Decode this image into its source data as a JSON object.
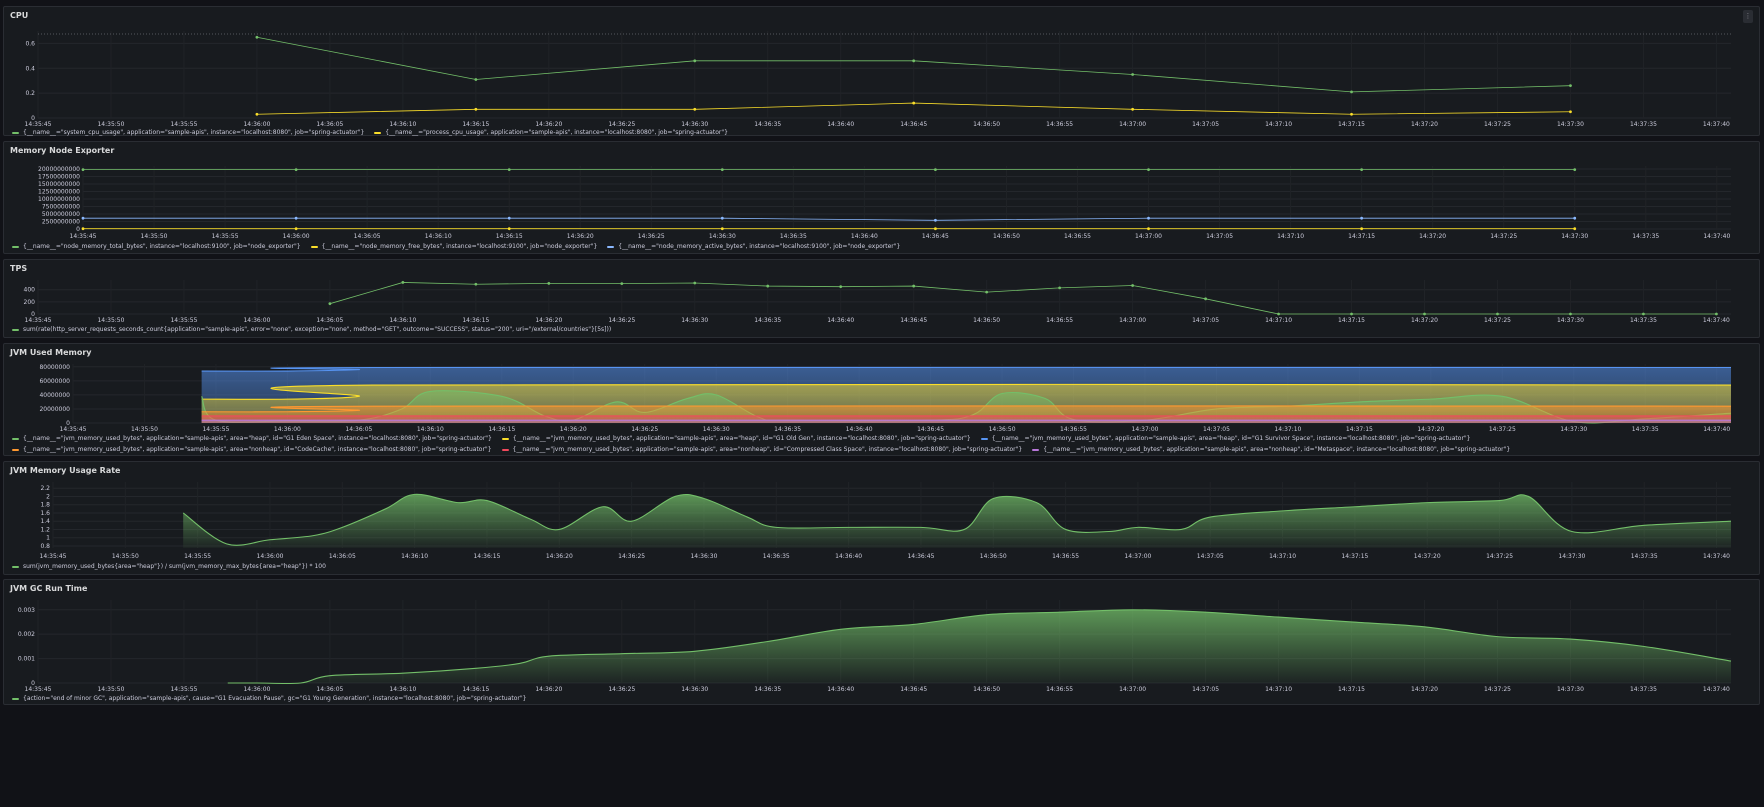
{
  "panels": [
    {
      "title": "CPU",
      "menu": "⋮",
      "chart_data": {
        "type": "line",
        "yticks": [
          "0.6",
          "0.4",
          "0.2",
          "0"
        ],
        "xticks": [
          "14:35:45",
          "14:35:50",
          "14:35:55",
          "14:36:00",
          "14:36:05",
          "14:36:10",
          "14:36:15",
          "14:36:20",
          "14:36:25",
          "14:36:30",
          "14:36:35",
          "14:36:40",
          "14:36:45",
          "14:36:50",
          "14:36:55",
          "14:37:00",
          "14:37:05",
          "14:37:10",
          "14:37:15",
          "14:37:20",
          "14:37:25",
          "14:37:30",
          "14:37:35",
          "14:37:40"
        ],
        "series": [
          {
            "name": "{__name__=\"system_cpu_usage\", application=\"sample-apis\", instance=\"localhost:8080\", job=\"spring-actuator\"}",
            "color": "#73bf69",
            "x": [
              "14:36:00",
              "14:36:15",
              "14:36:30",
              "14:36:45",
              "14:37:00",
              "14:37:15",
              "14:37:30"
            ],
            "values": [
              0.65,
              0.31,
              0.46,
              0.46,
              0.35,
              0.21,
              0.26
            ]
          },
          {
            "name": "{__name__=\"process_cpu_usage\", application=\"sample-apis\", instance=\"localhost:8080\", job=\"spring-actuator\"}",
            "color": "#fade2a",
            "x": [
              "14:36:00",
              "14:36:15",
              "14:36:30",
              "14:36:45",
              "14:37:00",
              "14:37:15",
              "14:37:30"
            ],
            "values": [
              0.03,
              0.07,
              0.07,
              0.12,
              0.07,
              0.03,
              0.05
            ]
          }
        ]
      }
    },
    {
      "title": "Memory Node Exporter",
      "chart_data": {
        "type": "line",
        "yticks": [
          "20000000000",
          "17500000000",
          "15000000000",
          "12500000000",
          "10000000000",
          "7500000000",
          "5000000000",
          "2500000000",
          "0"
        ],
        "xticks": [
          "14:35:45",
          "14:35:50",
          "14:35:55",
          "14:36:00",
          "14:36:05",
          "14:36:10",
          "14:36:15",
          "14:36:20",
          "14:36:25",
          "14:36:30",
          "14:36:35",
          "14:36:40",
          "14:36:45",
          "14:36:50",
          "14:36:55",
          "14:37:00",
          "14:37:05",
          "14:37:10",
          "14:37:15",
          "14:37:20",
          "14:37:25",
          "14:37:30",
          "14:37:35",
          "14:37:40"
        ],
        "series": [
          {
            "name": "{__name__=\"node_memory_total_bytes\", instance=\"localhost:9100\", job=\"node_exporter\"}",
            "color": "#73bf69",
            "x": [
              "14:35:45",
              "14:36:00",
              "14:36:15",
              "14:36:30",
              "14:36:45",
              "14:37:00",
              "14:37:15",
              "14:37:30"
            ],
            "values": [
              19800000000,
              19800000000,
              19800000000,
              19800000000,
              19800000000,
              19800000000,
              19800000000,
              19800000000
            ]
          },
          {
            "name": "{__name__=\"node_memory_free_bytes\", instance=\"localhost:9100\", job=\"node_exporter\"}",
            "color": "#fade2a",
            "x": [
              "14:35:45",
              "14:36:00",
              "14:36:15",
              "14:36:30",
              "14:36:45",
              "14:37:00",
              "14:37:15",
              "14:37:30"
            ],
            "values": [
              100000000,
              100000000,
              100000000,
              100000000,
              100000000,
              100000000,
              100000000,
              100000000
            ]
          },
          {
            "name": "{__name__=\"node_memory_active_bytes\", instance=\"localhost:9100\", job=\"node_exporter\"}",
            "color": "#8ab8ff",
            "x": [
              "14:35:45",
              "14:36:00",
              "14:36:15",
              "14:36:30",
              "14:36:45",
              "14:37:00",
              "14:37:15",
              "14:37:30"
            ],
            "values": [
              3600000000,
              3600000000,
              3600000000,
              3600000000,
              2900000000,
              3600000000,
              3600000000,
              3600000000
            ]
          }
        ]
      }
    },
    {
      "title": "TPS",
      "chart_data": {
        "type": "line",
        "yticks": [
          "400",
          "200",
          "0"
        ],
        "xticks": [
          "14:35:45",
          "14:35:50",
          "14:35:55",
          "14:36:00",
          "14:36:05",
          "14:36:10",
          "14:36:15",
          "14:36:20",
          "14:36:25",
          "14:36:30",
          "14:36:35",
          "14:36:40",
          "14:36:45",
          "14:36:50",
          "14:36:55",
          "14:37:00",
          "14:37:05",
          "14:37:10",
          "14:37:15",
          "14:37:20",
          "14:37:25",
          "14:37:30",
          "14:37:35",
          "14:37:40"
        ],
        "series": [
          {
            "name": "sum(rate(http_server_requests_seconds_count{application=\"sample-apis\", error=\"none\", exception=\"none\", method=\"GET\", outcome=\"SUCCESS\", status=\"200\", uri=\"/external/countries\"}[5s]))",
            "color": "#73bf69",
            "x": [
              "14:36:05",
              "14:36:10",
              "14:36:15",
              "14:36:20",
              "14:36:25",
              "14:36:30",
              "14:36:35",
              "14:36:40",
              "14:36:45",
              "14:36:50",
              "14:36:55",
              "14:37:00",
              "14:37:05",
              "14:37:10",
              "14:37:15",
              "14:37:20",
              "14:37:25",
              "14:37:30",
              "14:37:35",
              "14:37:40"
            ],
            "values": [
              170,
              520,
              490,
              505,
              500,
              510,
              460,
              450,
              460,
              360,
              430,
              470,
              250,
              0,
              0,
              0,
              0,
              0,
              0,
              0
            ]
          }
        ]
      }
    },
    {
      "title": "JVM Used Memory",
      "chart_data": {
        "type": "area",
        "yticks": [
          "80000000",
          "60000000",
          "40000000",
          "20000000",
          "0"
        ],
        "xticks": [
          "14:35:45",
          "14:35:50",
          "14:35:55",
          "14:36:00",
          "14:36:05",
          "14:36:10",
          "14:36:15",
          "14:36:20",
          "14:36:25",
          "14:36:30",
          "14:36:35",
          "14:36:40",
          "14:36:45",
          "14:36:50",
          "14:36:55",
          "14:37:00",
          "14:37:05",
          "14:37:10",
          "14:37:15",
          "14:37:20",
          "14:37:25",
          "14:37:30",
          "14:37:35",
          "14:37:40"
        ],
        "series": [
          {
            "name": "{__name__=\"jvm_memory_used_bytes\", application=\"sample-apis\", area=\"heap\", id=\"G1 Eden Space\", instance=\"localhost:8080\", job=\"spring-actuator\"}",
            "color": "#73bf69",
            "x": [
              "14:35:54",
              "14:35:55",
              "14:36:00",
              "14:36:05",
              "14:36:08",
              "14:36:10",
              "14:36:15",
              "14:36:18",
              "14:36:20",
              "14:36:23",
              "14:36:25",
              "14:36:28",
              "14:36:30",
              "14:36:33",
              "14:36:35",
              "14:36:45",
              "14:36:48",
              "14:36:50",
              "14:36:53",
              "14:36:55",
              "14:37:00",
              "14:37:05",
              "14:37:10",
              "14:37:15",
              "14:37:20",
              "14:37:25",
              "14:37:30",
              "14:37:35",
              "14:37:41"
            ],
            "values": [
              38000000,
              4000000,
              3000000,
              4000000,
              20000000,
              45000000,
              38000000,
              10000000,
              4000000,
              30000000,
              15000000,
              35000000,
              40000000,
              8000000,
              4000000,
              4000000,
              12000000,
              42000000,
              35000000,
              5000000,
              4000000,
              20000000,
              24000000,
              30000000,
              34000000,
              38000000,
              2000000,
              6000000,
              14000000
            ]
          },
          {
            "name": "{__name__=\"jvm_memory_used_bytes\", application=\"sample-apis\", area=\"heap\", id=\"G1 Old Gen\", instance=\"localhost:8080\", job=\"spring-actuator\"}",
            "color": "#fade2a",
            "x": [
              "14:35:54",
              "14:36:00",
              "14:36:05",
              "14:36:06",
              "14:37:41"
            ],
            "values": [
              34000000,
              34000000,
              38000000,
              54000000,
              54000000
            ]
          },
          {
            "name": "{__name__=\"jvm_memory_used_bytes\", application=\"sample-apis\", area=\"heap\", id=\"G1 Survivor Space\", instance=\"localhost:8080\", job=\"spring-actuator\"}",
            "color": "#5794f2",
            "x": [
              "14:35:54",
              "14:36:00",
              "14:36:05",
              "14:36:06",
              "14:37:41"
            ],
            "values": [
              74000000,
              74000000,
              76000000,
              79000000,
              79000000
            ]
          },
          {
            "name": "{__name__=\"jvm_memory_used_bytes\", application=\"sample-apis\", area=\"nonheap\", id=\"CodeCache\", instance=\"localhost:8080\", job=\"spring-actuator\"}",
            "color": "#ff9830",
            "x": [
              "14:35:54",
              "14:36:00",
              "14:36:05",
              "14:36:06",
              "14:37:41"
            ],
            "values": [
              16000000,
              16000000,
              18000000,
              24000000,
              24000000
            ]
          },
          {
            "name": "{__name__=\"jvm_memory_used_bytes\", application=\"sample-apis\", area=\"nonheap\", id=\"Compressed Class Space\", instance=\"localhost:8080\", job=\"spring-actuator\"}",
            "color": "#f2495c",
            "x": [
              "14:35:54",
              "14:37:41"
            ],
            "values": [
              10000000,
              10000000
            ]
          },
          {
            "name": "{__name__=\"jvm_memory_used_bytes\", application=\"sample-apis\", area=\"nonheap\", id=\"Metaspace\", instance=\"localhost:8080\", job=\"spring-actuator\"}",
            "color": "#b877d9",
            "x": [
              "14:35:54",
              "14:37:41"
            ],
            "values": [
              4000000,
              4000000
            ]
          }
        ]
      }
    },
    {
      "title": "JVM Memory Usage Rate",
      "chart_data": {
        "type": "area",
        "yticks": [
          "2.2",
          "2",
          "1.8",
          "1.6",
          "1.4",
          "1.2",
          "1",
          "0.8"
        ],
        "xticks": [
          "14:35:45",
          "14:35:50",
          "14:35:55",
          "14:36:00",
          "14:36:05",
          "14:36:10",
          "14:36:15",
          "14:36:20",
          "14:36:25",
          "14:36:30",
          "14:36:35",
          "14:36:40",
          "14:36:45",
          "14:36:50",
          "14:36:55",
          "14:37:00",
          "14:37:05",
          "14:37:10",
          "14:37:15",
          "14:37:20",
          "14:37:25",
          "14:37:30",
          "14:37:35",
          "14:37:40"
        ],
        "series": [
          {
            "name": "sum(jvm_memory_used_bytes{area=\"heap\"}) / sum(jvm_memory_max_bytes{area=\"heap\"}) * 100",
            "color": "#73bf69",
            "x": [
              "14:35:54",
              "14:35:57",
              "14:36:00",
              "14:36:03",
              "14:36:05",
              "14:36:08",
              "14:36:10",
              "14:36:13",
              "14:36:15",
              "14:36:18",
              "14:36:20",
              "14:36:23",
              "14:36:25",
              "14:36:28",
              "14:36:30",
              "14:36:33",
              "14:36:35",
              "14:36:40",
              "14:36:45",
              "14:36:48",
              "14:36:50",
              "14:36:53",
              "14:36:55",
              "14:36:58",
              "14:37:00",
              "14:37:03",
              "14:37:05",
              "14:37:10",
              "14:37:15",
              "14:37:20",
              "14:37:25",
              "14:37:27",
              "14:37:30",
              "14:37:35",
              "14:37:41"
            ],
            "values": [
              1.6,
              0.85,
              0.95,
              1.05,
              1.25,
              1.7,
              2.05,
              1.85,
              1.9,
              1.45,
              1.2,
              1.75,
              1.4,
              2.0,
              1.95,
              1.5,
              1.25,
              1.25,
              1.25,
              1.2,
              1.95,
              1.85,
              1.2,
              1.15,
              1.25,
              1.2,
              1.5,
              1.65,
              1.75,
              1.85,
              1.9,
              2.0,
              1.15,
              1.3,
              1.4
            ]
          }
        ]
      }
    },
    {
      "title": "JVM GC Run Time",
      "chart_data": {
        "type": "area",
        "yticks": [
          "0.003",
          "0.002",
          "0.001",
          "0"
        ],
        "xticks": [
          "14:35:45",
          "14:35:50",
          "14:35:55",
          "14:36:00",
          "14:36:05",
          "14:36:10",
          "14:36:15",
          "14:36:20",
          "14:36:25",
          "14:36:30",
          "14:36:35",
          "14:36:40",
          "14:36:45",
          "14:36:50",
          "14:36:55",
          "14:37:00",
          "14:37:05",
          "14:37:10",
          "14:37:15",
          "14:37:20",
          "14:37:25",
          "14:37:30",
          "14:37:35",
          "14:37:40"
        ],
        "series": [
          {
            "name": "{action=\"end of minor GC\", application=\"sample-apis\", cause=\"G1 Evacuation Pause\", gc=\"G1 Young Generation\", instance=\"localhost:8080\", job=\"spring-actuator\"}",
            "color": "#73bf69",
            "x": [
              "14:35:58",
              "14:36:00",
              "14:36:03",
              "14:36:05",
              "14:36:10",
              "14:36:15",
              "14:36:18",
              "14:36:20",
              "14:36:25",
              "14:36:30",
              "14:36:35",
              "14:36:40",
              "14:36:45",
              "14:36:50",
              "14:36:55",
              "14:37:00",
              "14:37:05",
              "14:37:10",
              "14:37:15",
              "14:37:20",
              "14:37:25",
              "14:37:30",
              "14:37:35",
              "14:37:41"
            ],
            "values": [
              0.0,
              0.0,
              0.0,
              0.0003,
              0.0004,
              0.0006,
              0.0008,
              0.0011,
              0.0012,
              0.0013,
              0.0017,
              0.0022,
              0.0024,
              0.0028,
              0.0029,
              0.003,
              0.0029,
              0.0027,
              0.0025,
              0.0023,
              0.0019,
              0.0018,
              0.0015,
              0.0009
            ]
          }
        ]
      }
    }
  ]
}
